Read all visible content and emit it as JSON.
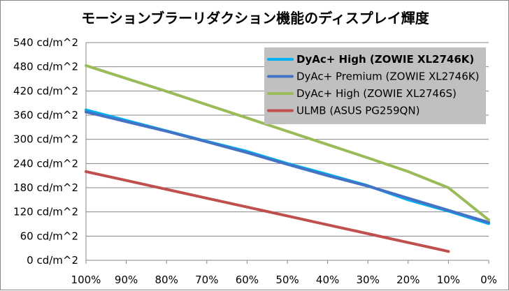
{
  "chart_data": {
    "type": "line",
    "title": "モーションブラーリダクション機能のディスプレイ輝度",
    "xlabel": "",
    "ylabel": "",
    "x": [
      "100%",
      "90%",
      "80%",
      "70%",
      "60%",
      "50%",
      "40%",
      "30%",
      "20%",
      "10%",
      "0%"
    ],
    "x_values": [
      100,
      90,
      80,
      70,
      60,
      50,
      40,
      30,
      20,
      10,
      0
    ],
    "ylim": [
      0,
      540
    ],
    "y_ticks": [
      0,
      60,
      120,
      180,
      240,
      300,
      360,
      420,
      480,
      540
    ],
    "y_tick_suffix": " cd/m^2",
    "grid": true,
    "legend_position": "top-right",
    "series": [
      {
        "name": "DyAc+ High (ZOWIE XL2746K)",
        "color": "#00b0f0",
        "highlight": true,
        "values": [
          373,
          347,
          321,
          295,
          270,
          240,
          213,
          185,
          150,
          122,
          91
        ]
      },
      {
        "name": "DyAc+ Premium (ZOWIE XL2746K)",
        "color": "#4472c4",
        "highlight": false,
        "values": [
          368,
          344,
          320,
          294,
          267,
          238,
          210,
          184,
          154,
          124,
          94
        ]
      },
      {
        "name": "DyAc+ High (ZOWIE XL2746S)",
        "color": "#9bbb59",
        "highlight": false,
        "values": [
          483,
          451,
          419,
          386,
          353,
          320,
          287,
          254,
          220,
          180,
          100
        ]
      },
      {
        "name": "ULMB (ASUS PG259QN)",
        "color": "#c0504d",
        "highlight": false,
        "values": [
          220,
          198,
          176,
          154,
          132,
          110,
          88,
          66,
          44,
          22,
          null
        ]
      }
    ]
  }
}
